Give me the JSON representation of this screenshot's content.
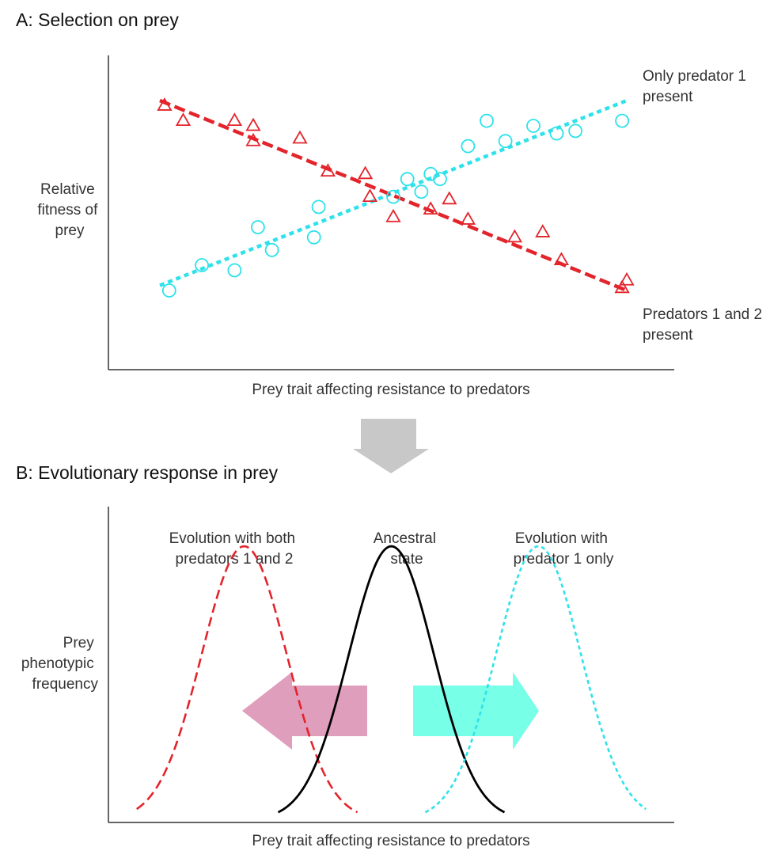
{
  "colors": {
    "red": "#e3242b",
    "cyan": "#2de2ea",
    "black": "#000000",
    "axis": "#333333",
    "arrow_down": "#c8c8c8",
    "arrow_left": "#e09ebd",
    "arrow_right": "#77ffe8"
  },
  "panel_a": {
    "title": "A: Selection on prey",
    "ylabel_lines": [
      "Relative",
      "fitness of",
      "prey"
    ],
    "xlabel": "Prey trait affecting resistance to predators",
    "legend_cyan_lines": [
      "Only predator 1",
      "present"
    ],
    "legend_red_lines": [
      "Predators 1 and 2",
      "present"
    ]
  },
  "panel_b": {
    "title": "B: Evolutionary response in prey",
    "ylabel_lines": [
      "Prey",
      "phenotypic",
      "frequency"
    ],
    "xlabel": "Prey trait affecting resistance to predators",
    "label_left_lines": [
      "Evolution with both",
      "predators 1 and 2"
    ],
    "label_center_lines": [
      "Ancestral",
      "state"
    ],
    "label_right_lines": [
      "Evolution with",
      "predator 1 only"
    ]
  },
  "chart_data": [
    {
      "type": "scatter",
      "title": "A: Selection on prey",
      "xlabel": "Prey trait affecting resistance to predators",
      "ylabel": "Relative fitness of prey",
      "xlim": [
        0,
        10
      ],
      "ylim": [
        0,
        10
      ],
      "grid": false,
      "axis_ticks": false,
      "series": [
        {
          "name": "Only predator 1 present",
          "marker": "circle",
          "color": "#2de2ea",
          "trendline": [
            [
              0,
              1.7
            ],
            [
              10,
              9.0
            ]
          ],
          "x": [
            0.2,
            0.9,
            1.6,
            2.1,
            2.4,
            3.3,
            3.4,
            5.0,
            5.3,
            5.6,
            5.8,
            6.0,
            6.6,
            7.0,
            7.4,
            8.0,
            8.5,
            8.9,
            9.9
          ],
          "y": [
            1.5,
            2.5,
            2.3,
            4.0,
            3.1,
            3.6,
            4.8,
            5.2,
            5.9,
            5.4,
            6.1,
            5.9,
            7.2,
            8.2,
            7.4,
            8.0,
            7.7,
            7.8,
            8.2
          ]
        },
        {
          "name": "Predators 1 and 2 present",
          "marker": "triangle",
          "color": "#e3242b",
          "trendline": [
            [
              0,
              9.0
            ],
            [
              10,
              1.5
            ]
          ],
          "x": [
            0.1,
            0.5,
            1.6,
            2.0,
            2.0,
            3.0,
            3.6,
            4.4,
            4.5,
            5.0,
            5.8,
            6.2,
            6.6,
            7.6,
            8.2,
            8.6,
            9.9,
            10.0
          ],
          "y": [
            8.8,
            8.2,
            8.2,
            8.0,
            7.4,
            7.5,
            6.2,
            6.1,
            5.2,
            4.4,
            4.7,
            5.1,
            4.3,
            3.6,
            3.8,
            2.7,
            1.6,
            1.9
          ]
        }
      ]
    },
    {
      "type": "line",
      "title": "B: Evolutionary response in prey",
      "xlabel": "Prey trait affecting resistance to predators",
      "ylabel": "Prey phenotypic frequency",
      "xlim": [
        0,
        10
      ],
      "ylim": [
        0,
        10
      ],
      "grid": false,
      "series": [
        {
          "name": "Evolution with both predators 1 and 2",
          "style": "dashed",
          "color": "#e3242b",
          "center": 2.4,
          "width": 0.75,
          "peak": 9.2,
          "x_range": [
            0.5,
            4.4
          ]
        },
        {
          "name": "Ancestral state",
          "style": "solid",
          "color": "#000000",
          "center": 5.0,
          "width": 0.75,
          "peak": 9.2,
          "x_range": [
            3.0,
            7.0
          ]
        },
        {
          "name": "Evolution with predator 1 only",
          "style": "dotted",
          "color": "#2de2ea",
          "center": 7.6,
          "width": 0.75,
          "peak": 9.2,
          "x_range": [
            5.6,
            9.5
          ]
        }
      ]
    }
  ]
}
